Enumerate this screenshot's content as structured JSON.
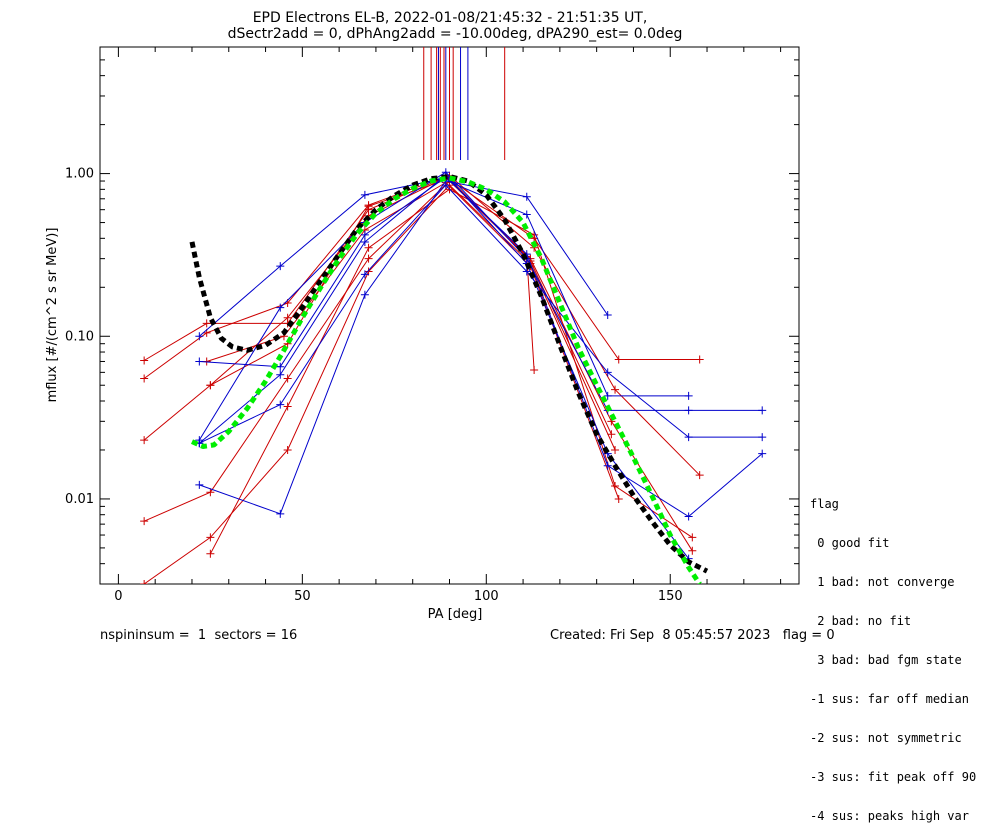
{
  "title_line1": "EPD Electrons EL-B, 2022-01-08/21:45:32 - 21:51:35 UT,",
  "title_line2": "dSectr2add = 0, dPhAng2add = -10.00deg, dPA290_est=   0.0deg",
  "footer_left": "nspininsum =  1  sectors = 16",
  "footer_right": "Created: Fri Sep  8 05:45:57 2023   flag = 0",
  "legend": {
    "title": "flag",
    "items": [
      " 0 good fit",
      " 1 bad: not converge",
      " 2 bad: no fit",
      " 3 bad: bad fgm state",
      "-1 sus: far off median",
      "-2 sus: not symmetric",
      "-3 sus: fit peak off 90",
      "-4 sus: peaks high var"
    ]
  },
  "colors": {
    "red": "#cc0000",
    "blue": "#0000cc",
    "green": "#00ee00",
    "black": "#000000"
  },
  "chart_data": {
    "type": "line",
    "xlabel": "PA [deg]",
    "ylabel": "mflux [#/(cm^2 s sr MeV)]",
    "xlim": [
      -5,
      185
    ],
    "ylim": [
      0.003,
      6
    ],
    "yscale": "log",
    "xticks": [
      0,
      50,
      100,
      150
    ],
    "xtick_labels": [
      "0",
      "50",
      "100",
      "150"
    ],
    "yticks": [
      0.01,
      0.1,
      1.0
    ],
    "ytick_labels": [
      "0.01",
      "0.10",
      "1.00"
    ],
    "peak_markers": {
      "red": [
        83,
        85,
        86.5,
        87.5,
        88.5,
        90,
        91,
        105
      ],
      "blue": [
        87,
        89,
        93,
        95
      ]
    },
    "series": [
      {
        "color": "red",
        "points": [
          [
            7,
            0.071
          ],
          [
            24,
            0.12
          ],
          [
            46,
            0.12
          ],
          [
            68,
            0.6
          ],
          [
            89,
            0.95
          ],
          [
            111,
            0.31
          ],
          [
            113,
            0.062
          ]
        ]
      },
      {
        "color": "red",
        "points": [
          [
            7,
            0.055
          ],
          [
            24,
            0.105
          ],
          [
            46,
            0.16
          ],
          [
            68,
            0.64
          ],
          [
            89,
            0.96
          ],
          [
            113,
            0.4
          ],
          [
            136,
            0.072
          ],
          [
            158,
            0.072
          ]
        ]
      },
      {
        "color": "red",
        "points": [
          [
            7,
            0.023
          ],
          [
            25,
            0.05
          ],
          [
            46,
            0.13
          ],
          [
            68,
            0.55
          ],
          [
            90,
            0.97
          ],
          [
            113,
            0.35
          ],
          [
            135,
            0.047
          ],
          [
            158,
            0.014
          ]
        ]
      },
      {
        "color": "red",
        "points": [
          [
            7,
            0.0073
          ],
          [
            25,
            0.011
          ],
          [
            46,
            0.055
          ],
          [
            68,
            0.3
          ],
          [
            90,
            0.9
          ],
          [
            112,
            0.3
          ],
          [
            134,
            0.03
          ],
          [
            156,
            0.0048
          ]
        ]
      },
      {
        "color": "red",
        "points": [
          [
            7,
            0.003
          ],
          [
            25,
            0.0058
          ],
          [
            46,
            0.02
          ],
          [
            68,
            0.25
          ],
          [
            90,
            0.85
          ],
          [
            112,
            0.28
          ],
          [
            135,
            0.02
          ]
        ]
      },
      {
        "color": "red",
        "points": [
          [
            25,
            0.0046
          ],
          [
            46,
            0.037
          ],
          [
            68,
            0.35
          ],
          [
            90,
            0.8
          ],
          [
            113,
            0.42
          ],
          [
            135,
            0.012
          ],
          [
            156,
            0.0058
          ]
        ]
      },
      {
        "color": "red",
        "points": [
          [
            24,
            0.07
          ],
          [
            45,
            0.1
          ],
          [
            67,
            0.45
          ],
          [
            89,
            0.88
          ],
          [
            112,
            0.27
          ],
          [
            136,
            0.01
          ]
        ]
      },
      {
        "color": "red",
        "points": [
          [
            25,
            0.05
          ],
          [
            46,
            0.09
          ],
          [
            68,
            0.63
          ],
          [
            90,
            0.93
          ],
          [
            112,
            0.29
          ],
          [
            134,
            0.025
          ]
        ]
      },
      {
        "color": "blue",
        "points": [
          [
            22,
            0.0122
          ],
          [
            44,
            0.0081
          ],
          [
            67,
            0.18
          ],
          [
            89,
            0.9
          ],
          [
            111,
            0.72
          ],
          [
            133,
            0.135
          ]
        ]
      },
      {
        "color": "blue",
        "points": [
          [
            22,
            0.1
          ],
          [
            44,
            0.27
          ],
          [
            67,
            0.74
          ],
          [
            88,
            0.93
          ],
          [
            111,
            0.56
          ],
          [
            133,
            0.043
          ],
          [
            155,
            0.043
          ]
        ]
      },
      {
        "color": "blue",
        "points": [
          [
            22,
            0.023
          ],
          [
            44,
            0.15
          ],
          [
            67,
            0.5
          ],
          [
            89,
            1.02
          ],
          [
            111,
            0.3
          ],
          [
            133,
            0.035
          ],
          [
            155,
            0.035
          ],
          [
            175,
            0.035
          ]
        ]
      },
      {
        "color": "blue",
        "points": [
          [
            22,
            0.022
          ],
          [
            44,
            0.038
          ],
          [
            67,
            0.24
          ],
          [
            89,
            0.85
          ],
          [
            111,
            0.25
          ],
          [
            133,
            0.06
          ],
          [
            155,
            0.024
          ],
          [
            175,
            0.024
          ]
        ]
      },
      {
        "color": "blue",
        "points": [
          [
            22,
            0.07
          ],
          [
            44,
            0.065
          ],
          [
            67,
            0.42
          ],
          [
            89,
            0.95
          ],
          [
            111,
            0.32
          ],
          [
            133,
            0.016
          ],
          [
            155,
            0.0078
          ],
          [
            175,
            0.019
          ]
        ]
      },
      {
        "color": "blue",
        "points": [
          [
            22,
            0.022
          ],
          [
            44,
            0.058
          ],
          [
            67,
            0.38
          ],
          [
            89,
            0.98
          ],
          [
            111,
            0.28
          ],
          [
            133,
            0.019
          ],
          [
            155,
            0.0043
          ]
        ]
      }
    ],
    "fits": [
      {
        "color": "black",
        "style": "dashed",
        "points": [
          [
            20,
            0.38
          ],
          [
            22,
            0.23
          ],
          [
            25,
            0.13
          ],
          [
            28,
            0.097
          ],
          [
            31,
            0.086
          ],
          [
            35,
            0.082
          ],
          [
            40,
            0.088
          ],
          [
            45,
            0.105
          ],
          [
            50,
            0.15
          ],
          [
            55,
            0.22
          ],
          [
            60,
            0.32
          ],
          [
            65,
            0.46
          ],
          [
            70,
            0.6
          ],
          [
            75,
            0.73
          ],
          [
            80,
            0.85
          ],
          [
            85,
            0.93
          ],
          [
            90,
            0.96
          ],
          [
            95,
            0.9
          ],
          [
            100,
            0.74
          ],
          [
            105,
            0.52
          ],
          [
            110,
            0.32
          ],
          [
            115,
            0.175
          ],
          [
            120,
            0.088
          ],
          [
            125,
            0.045
          ],
          [
            130,
            0.025
          ],
          [
            135,
            0.016
          ],
          [
            140,
            0.0105
          ],
          [
            145,
            0.0073
          ],
          [
            150,
            0.0052
          ],
          [
            155,
            0.0041
          ],
          [
            160,
            0.0036
          ]
        ]
      },
      {
        "color": "green",
        "style": "dashed",
        "points": [
          [
            20,
            0.0225
          ],
          [
            23,
            0.021
          ],
          [
            26,
            0.0215
          ],
          [
            30,
            0.026
          ],
          [
            35,
            0.036
          ],
          [
            40,
            0.053
          ],
          [
            45,
            0.082
          ],
          [
            50,
            0.13
          ],
          [
            55,
            0.2
          ],
          [
            60,
            0.3
          ],
          [
            65,
            0.43
          ],
          [
            70,
            0.57
          ],
          [
            75,
            0.7
          ],
          [
            80,
            0.81
          ],
          [
            85,
            0.9
          ],
          [
            90,
            0.94
          ],
          [
            95,
            0.89
          ],
          [
            100,
            0.8
          ],
          [
            105,
            0.67
          ],
          [
            110,
            0.5
          ],
          [
            115,
            0.3
          ],
          [
            120,
            0.16
          ],
          [
            125,
            0.085
          ],
          [
            130,
            0.05
          ],
          [
            135,
            0.03
          ],
          [
            140,
            0.018
          ],
          [
            145,
            0.0105
          ],
          [
            150,
            0.006
          ],
          [
            155,
            0.0038
          ],
          [
            158,
            0.003
          ]
        ]
      }
    ]
  }
}
